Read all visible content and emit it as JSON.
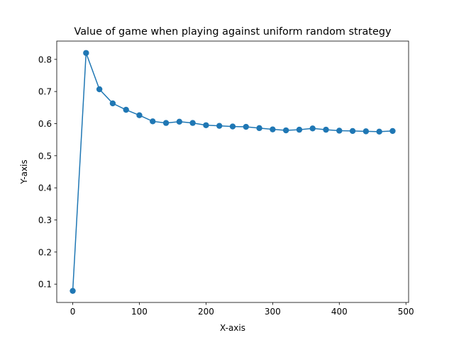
{
  "chart_data": {
    "type": "line",
    "title": "Value of game when playing against uniform random strategy",
    "xlabel": "X-axis",
    "ylabel": "Y-axis",
    "xlim": [
      -24,
      504
    ],
    "ylim": [
      0.043,
      0.857
    ],
    "xticks": [
      0,
      100,
      200,
      300,
      400,
      500
    ],
    "yticks": [
      0.1,
      0.2,
      0.3,
      0.4,
      0.5,
      0.6,
      0.7,
      0.8
    ],
    "xtick_labels": [
      "0",
      "100",
      "200",
      "300",
      "400",
      "500"
    ],
    "ytick_labels": [
      "0.1",
      "0.2",
      "0.3",
      "0.4",
      "0.5",
      "0.6",
      "0.7",
      "0.8"
    ],
    "grid": false,
    "color": "#1f77b4",
    "marker": "circle",
    "x": [
      0,
      20,
      40,
      60,
      80,
      100,
      120,
      140,
      160,
      180,
      200,
      220,
      240,
      260,
      280,
      300,
      320,
      340,
      360,
      380,
      400,
      420,
      440,
      460,
      480
    ],
    "y": [
      0.079,
      0.82,
      0.707,
      0.663,
      0.643,
      0.626,
      0.607,
      0.602,
      0.606,
      0.602,
      0.595,
      0.593,
      0.591,
      0.59,
      0.586,
      0.582,
      0.579,
      0.581,
      0.585,
      0.581,
      0.578,
      0.577,
      0.576,
      0.575,
      0.577
    ]
  }
}
